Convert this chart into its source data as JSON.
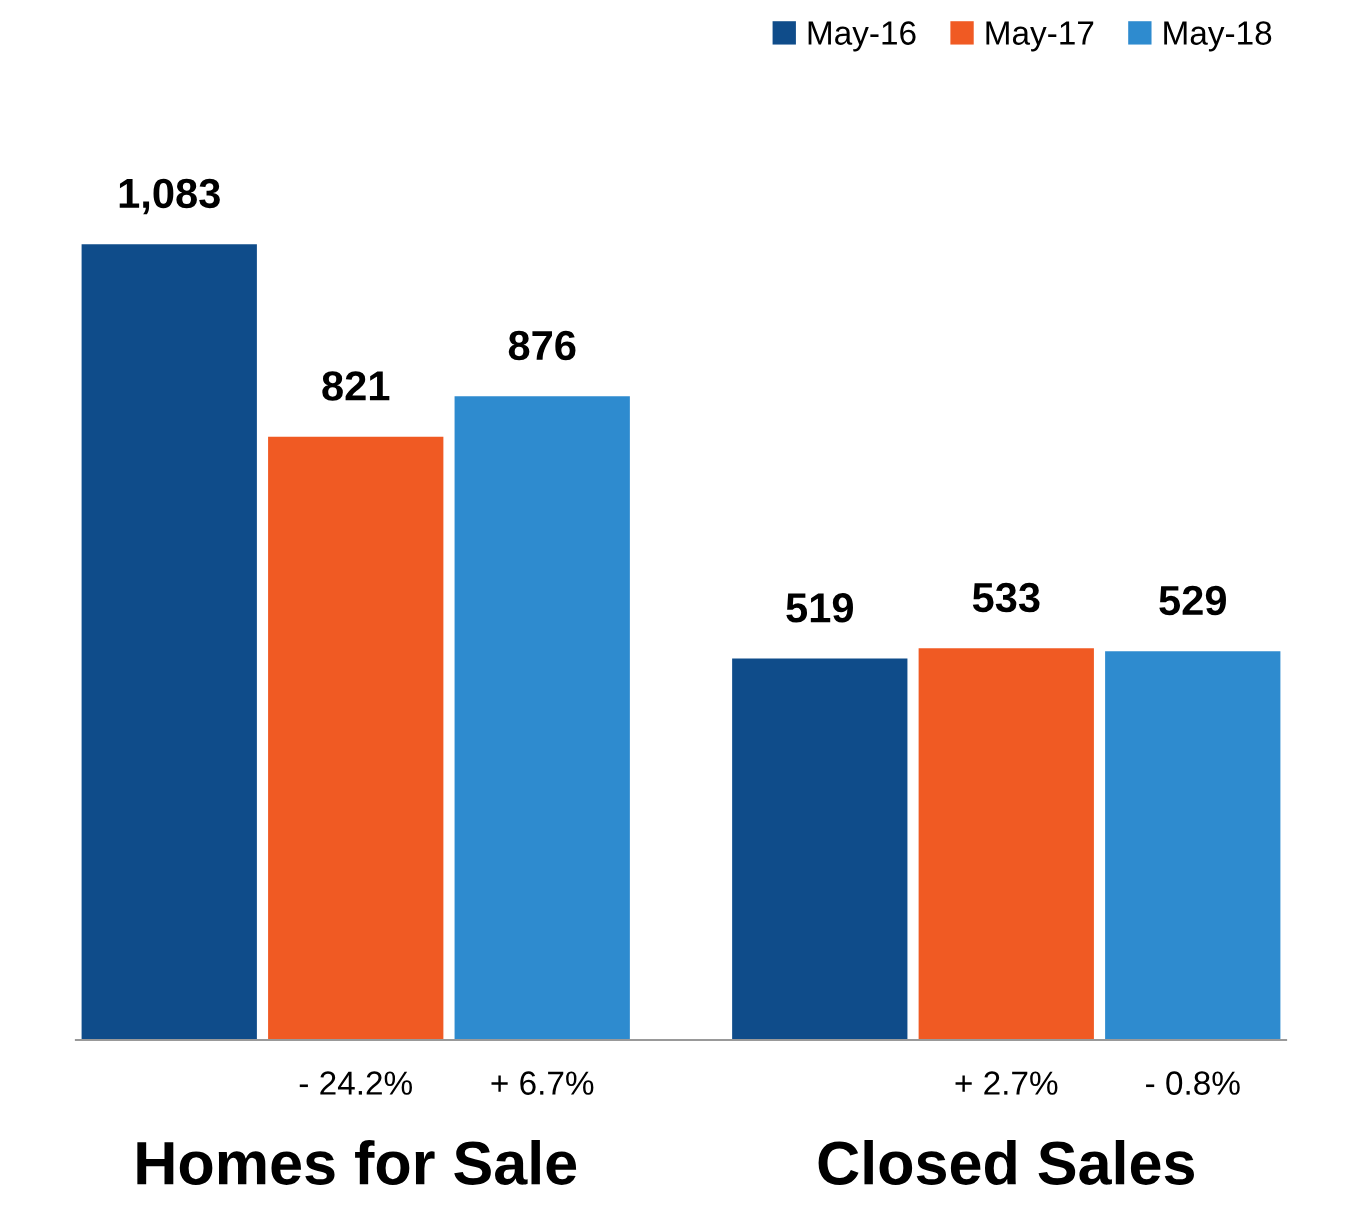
{
  "chart_data": {
    "type": "bar",
    "categories": [
      "Homes for Sale",
      "Closed Sales"
    ],
    "series": [
      {
        "name": "May-16",
        "color": "#0f4c8a",
        "values": [
          1083,
          519
        ],
        "value_labels": [
          "1,083",
          "519"
        ]
      },
      {
        "name": "May-17",
        "color": "#f05a23",
        "values": [
          821,
          533
        ],
        "value_labels": [
          "821",
          "533"
        ]
      },
      {
        "name": "May-18",
        "color": "#2e8bcf",
        "values": [
          876,
          529
        ],
        "value_labels": [
          "876",
          "529"
        ]
      }
    ],
    "annotations": [
      "- 24.2%",
      "+ 6.7%",
      "+ 2.7%",
      "- 0.8%"
    ],
    "legend": "top right",
    "grid": false
  }
}
